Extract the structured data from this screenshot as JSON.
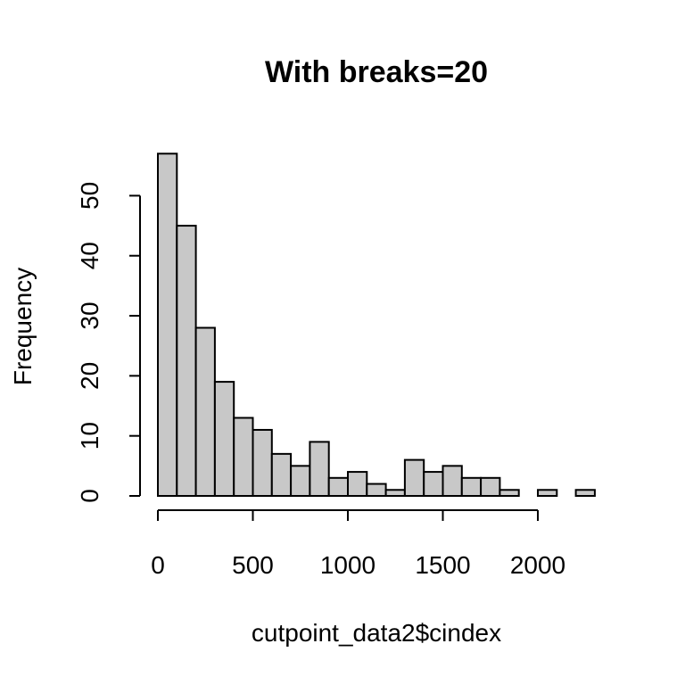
{
  "chart_data": {
    "type": "bar",
    "title": "With breaks=20",
    "xlabel": "cutpoint_data2$cindex",
    "ylabel": "Frequency",
    "bin_width": 100,
    "bins": [
      {
        "x0": 0,
        "x1": 100,
        "count": 57
      },
      {
        "x0": 100,
        "x1": 200,
        "count": 45
      },
      {
        "x0": 200,
        "x1": 300,
        "count": 28
      },
      {
        "x0": 300,
        "x1": 400,
        "count": 19
      },
      {
        "x0": 400,
        "x1": 500,
        "count": 13
      },
      {
        "x0": 500,
        "x1": 600,
        "count": 11
      },
      {
        "x0": 600,
        "x1": 700,
        "count": 7
      },
      {
        "x0": 700,
        "x1": 800,
        "count": 5
      },
      {
        "x0": 800,
        "x1": 900,
        "count": 9
      },
      {
        "x0": 900,
        "x1": 1000,
        "count": 3
      },
      {
        "x0": 1000,
        "x1": 1100,
        "count": 4
      },
      {
        "x0": 1100,
        "x1": 1200,
        "count": 2
      },
      {
        "x0": 1200,
        "x1": 1300,
        "count": 1
      },
      {
        "x0": 1300,
        "x1": 1400,
        "count": 6
      },
      {
        "x0": 1400,
        "x1": 1500,
        "count": 4
      },
      {
        "x0": 1500,
        "x1": 1600,
        "count": 5
      },
      {
        "x0": 1600,
        "x1": 1700,
        "count": 3
      },
      {
        "x0": 1700,
        "x1": 1800,
        "count": 3
      },
      {
        "x0": 1800,
        "x1": 1900,
        "count": 1
      },
      {
        "x0": 1900,
        "x1": 2000,
        "count": 0
      },
      {
        "x0": 2000,
        "x1": 2100,
        "count": 1
      },
      {
        "x0": 2100,
        "x1": 2200,
        "count": 0
      },
      {
        "x0": 2200,
        "x1": 2300,
        "count": 1
      }
    ],
    "x_ticks": [
      0,
      500,
      1000,
      1500,
      2000
    ],
    "y_ticks": [
      0,
      10,
      20,
      30,
      40,
      50
    ],
    "xlim": [
      0,
      2300
    ],
    "ylim": [
      0,
      57
    ],
    "bar_color": "#c8c8c8",
    "grid": false,
    "legend": "none"
  }
}
